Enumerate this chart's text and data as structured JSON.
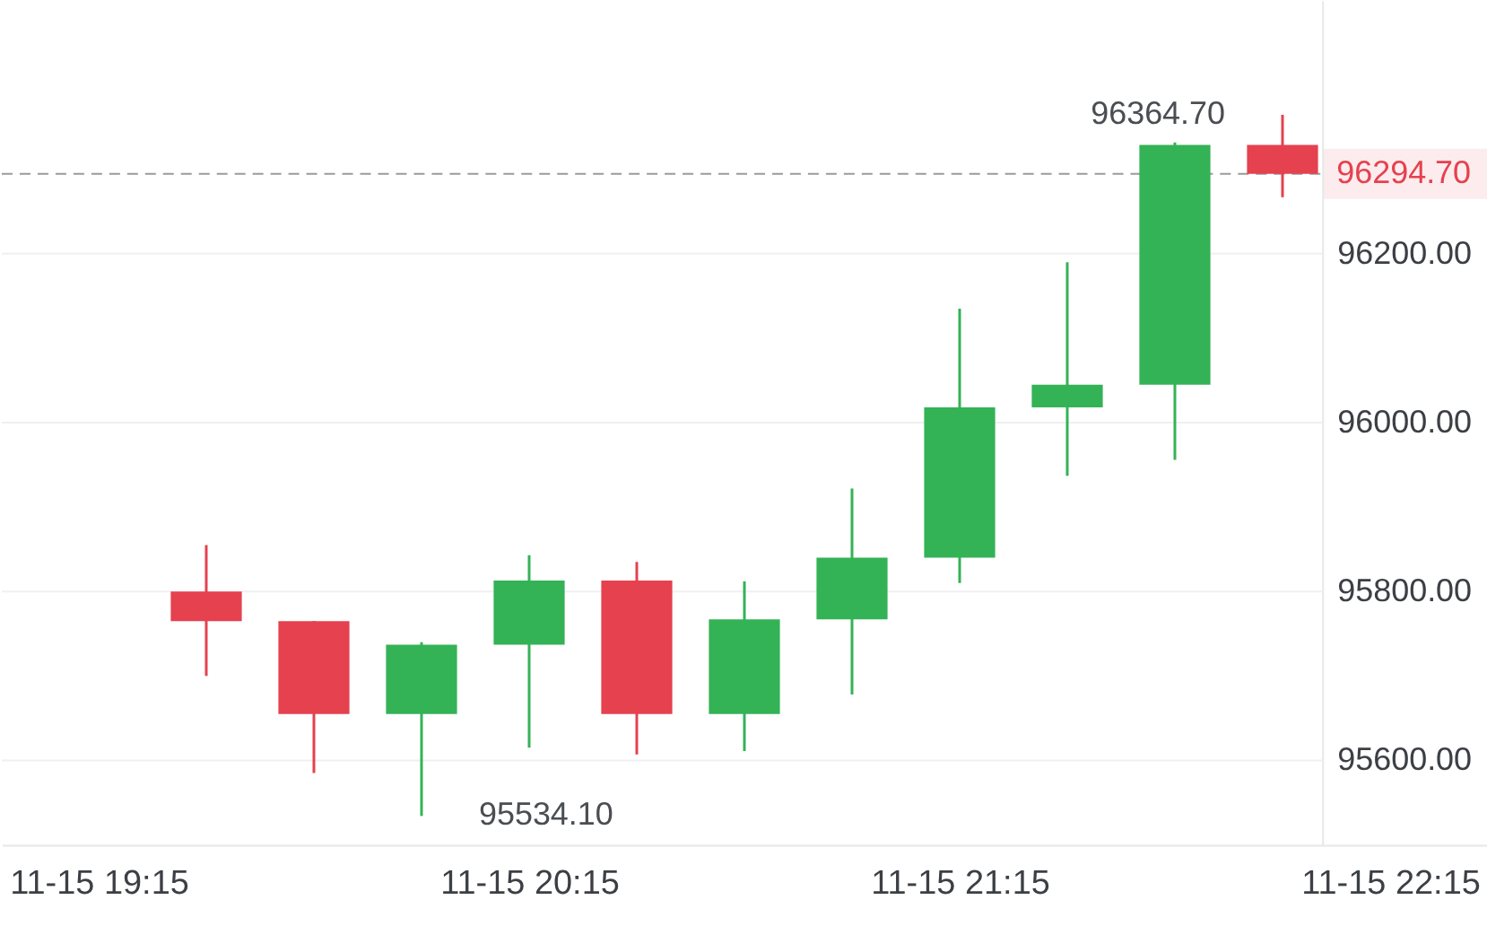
{
  "chart_data": {
    "type": "candlestick",
    "categories": [
      "11-15 19:15",
      null,
      null,
      null,
      "11-15 20:15",
      null,
      null,
      null,
      "11-15 21:15",
      null,
      null,
      null,
      "11-15 22:15"
    ],
    "ohlc": [
      null,
      [
        95800,
        95855,
        95700,
        95765
      ],
      [
        95765,
        95765,
        95585,
        95655
      ],
      [
        95655,
        95740,
        95534.1,
        95737
      ],
      [
        95737,
        95843,
        95615,
        95813
      ],
      [
        95813,
        95835,
        95607,
        95655
      ],
      [
        95655,
        95812,
        95611,
        95767
      ],
      [
        95767,
        95922,
        95678,
        95840
      ],
      [
        95840,
        96135,
        95810,
        96018
      ],
      [
        96018,
        96190,
        95937,
        96045
      ],
      [
        96045,
        96332,
        95956,
        96329
      ],
      [
        96329,
        96364.7,
        96267,
        96294.7
      ],
      null
    ],
    "colors": [
      null,
      "#e5414f",
      "#e5414f",
      "#34b256",
      "#34b256",
      "#e5414f",
      "#34b256",
      "#34b256",
      "#34b256",
      "#34b256",
      "#34b256",
      "#e5414f",
      null
    ],
    "ylim": [
      95500,
      96500
    ],
    "yticks": [
      {
        "value": 95600,
        "label": "95600.00"
      },
      {
        "value": 95800,
        "label": "95800.00"
      },
      {
        "value": 96000,
        "label": "96000.00"
      },
      {
        "value": 96200,
        "label": "96200.00"
      }
    ],
    "grid": "y",
    "ref_lines": [
      {
        "axis": "y",
        "value": 96294.7,
        "label": "96294.70",
        "color": "#9a9a9a",
        "line_style": "dashed"
      }
    ],
    "annotations": [
      "95534.10",
      "96364.70"
    ]
  }
}
